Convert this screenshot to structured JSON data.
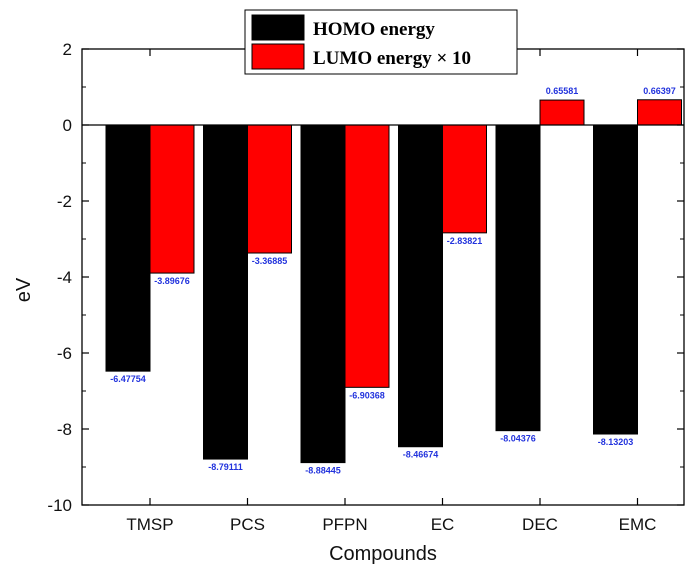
{
  "chart_data": {
    "type": "bar",
    "title": "",
    "xlabel": "Compounds",
    "ylabel": "eV",
    "ylim": [
      -10,
      2
    ],
    "yticks": [
      2,
      0,
      -2,
      -4,
      -6,
      -8,
      -10
    ],
    "ytick_labels": [
      "2",
      "0",
      "-2",
      "-4",
      "-6",
      "-8",
      "-10"
    ],
    "categories": [
      "TMSP",
      "PCS",
      "PFPN",
      "EC",
      "DEC",
      "EMC"
    ],
    "series": [
      {
        "name": "HOMO energy",
        "color": "#000000",
        "values": [
          -6.47754,
          -8.79111,
          -8.88445,
          -8.46674,
          -8.04376,
          -8.13203
        ],
        "labels": [
          "-6.47754",
          "-8.79111",
          "-8.88445",
          "-8.46674",
          "-8.04376",
          "-8.13203"
        ]
      },
      {
        "name": "LUMO energy × 10",
        "color": "#ff0000",
        "values": [
          -3.89676,
          -3.36885,
          -6.90368,
          -2.83821,
          0.65581,
          0.66397
        ],
        "labels": [
          "-3.89676",
          "-3.36885",
          "-6.90368",
          "-2.83821",
          "0.65581",
          "0.66397"
        ]
      }
    ],
    "legend_position": "top-center",
    "grid": false
  }
}
